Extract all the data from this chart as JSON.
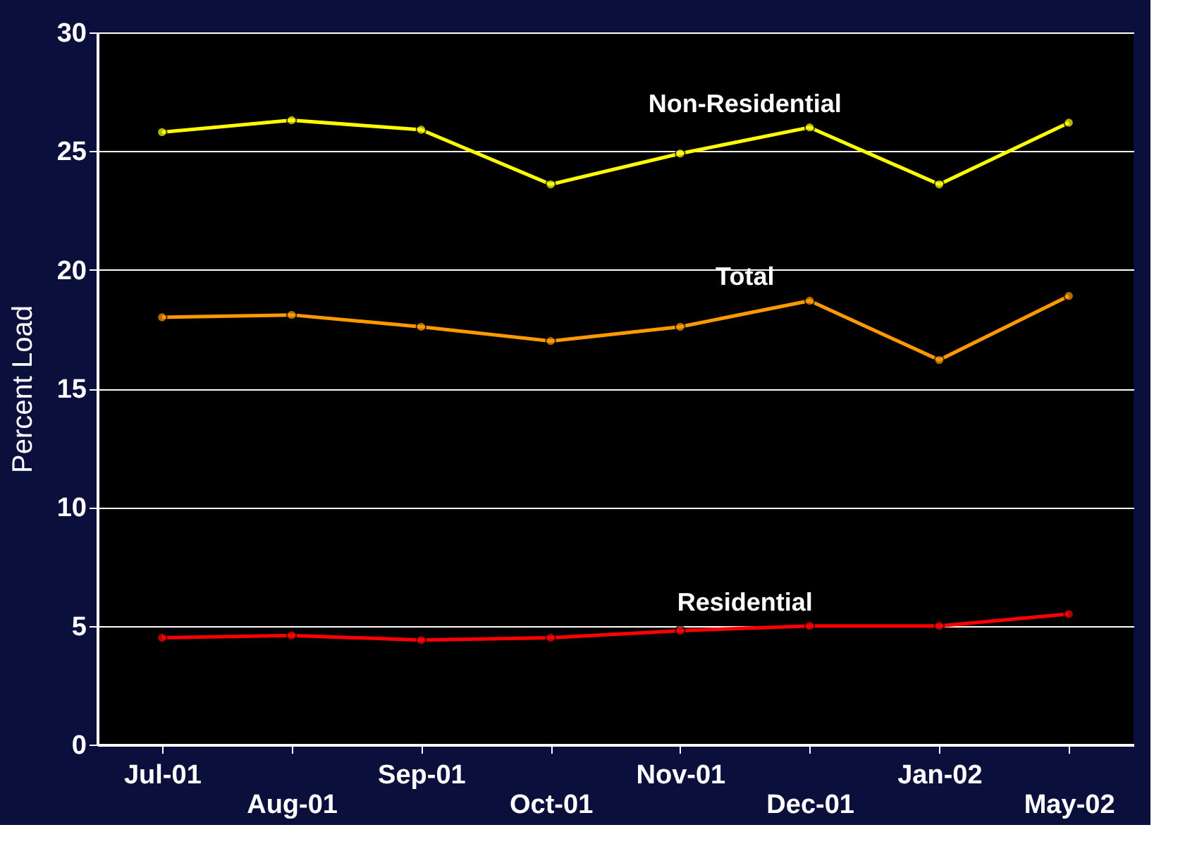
{
  "chart_data": {
    "type": "line",
    "ylabel": "Percent Load",
    "categories": [
      "Jul-01",
      "Aug-01",
      "Sep-01",
      "Oct-01",
      "Nov-01",
      "Dec-01",
      "Jan-02",
      "May-02"
    ],
    "series": [
      {
        "name": "Non-Residential",
        "color": "#ffff00",
        "values": [
          25.8,
          26.3,
          25.9,
          23.6,
          24.9,
          26.0,
          23.6,
          26.2
        ]
      },
      {
        "name": "Total",
        "color": "#ff9900",
        "values": [
          18.0,
          18.1,
          17.6,
          17.0,
          17.6,
          18.7,
          16.2,
          18.9
        ]
      },
      {
        "name": "Residential",
        "color": "#ff0000",
        "values": [
          4.5,
          4.6,
          4.4,
          4.5,
          4.8,
          5.0,
          5.0,
          5.5
        ]
      }
    ],
    "ylim": [
      0,
      30
    ],
    "yticks": [
      0,
      5,
      10,
      15,
      20,
      25,
      30
    ],
    "grid": "y",
    "marker": "circle",
    "line_style": "solid",
    "legend": false
  }
}
